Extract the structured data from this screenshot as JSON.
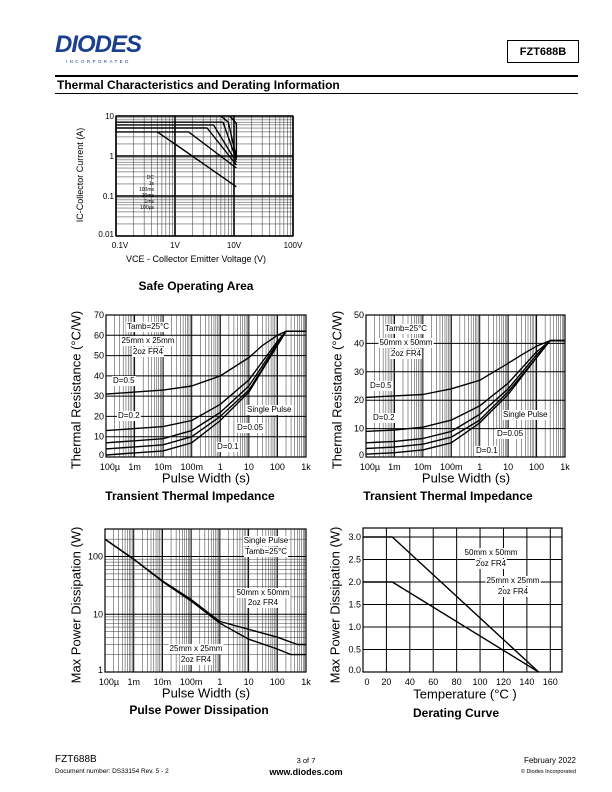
{
  "header": {
    "logo_text": "DIODES",
    "logo_sub": "INCORPORATED",
    "part_number": "FZT688B"
  },
  "section_title": "Thermal Characteristics and Derating Information",
  "footer": {
    "part": "FZT688B",
    "doc_number": "Document number: DS33154 Rev. 5 - 2",
    "page": "3 of 7",
    "website": "www.diodes.com",
    "date": "February 2022",
    "copyright": "© Diodes Incorporated"
  },
  "chart_data": [
    {
      "type": "line",
      "title": "Safe Operating Area",
      "xlabel": "VCE - Collector Emitter Voltage (V)",
      "ylabel": "IC-Collector Current (A)",
      "xscale": "log",
      "yscale": "log",
      "xlim": [
        0.1,
        100
      ],
      "ylim": [
        0.01,
        10
      ],
      "grid": true,
      "x_ticks": [
        {
          "value": 0.1,
          "label": "0.1V"
        },
        {
          "value": 1,
          "label": "1V"
        },
        {
          "value": 10,
          "label": "10V"
        },
        {
          "value": 100,
          "label": "100V"
        }
      ],
      "y_ticks": [
        {
          "value": 0.01,
          "label": "0.01"
        },
        {
          "value": 0.1,
          "label": "0.1"
        },
        {
          "value": 1,
          "label": "1"
        },
        {
          "value": 10,
          "label": "10"
        }
      ],
      "annotations": [
        "DC",
        "1s",
        "100ms",
        "10ms",
        "1ms",
        "100µs"
      ],
      "series": [
        {
          "name": "DC",
          "x": [
            0.5,
            1,
            11
          ],
          "y": [
            4,
            2,
            0.17
          ]
        },
        {
          "name": "1s",
          "x": [
            0.1,
            1.7,
            11
          ],
          "y": [
            4,
            4,
            0.5
          ]
        },
        {
          "name": "100ms",
          "x": [
            0.1,
            3.5,
            11
          ],
          "y": [
            5,
            5,
            0.6
          ]
        },
        {
          "name": "10ms",
          "x": [
            0.1,
            4.5,
            11
          ],
          "y": [
            6,
            6,
            0.7
          ]
        },
        {
          "name": "1ms",
          "x": [
            0.1,
            6.5,
            11
          ],
          "y": [
            7,
            7,
            0.8
          ]
        },
        {
          "name": "100µs",
          "x": [
            6,
            8,
            11,
            11,
            8.5
          ],
          "y": [
            10,
            7,
            0.9,
            6.5,
            10
          ]
        }
      ]
    },
    {
      "type": "line",
      "title": "Transient Thermal Impedance",
      "xlabel": "Pulse Width (s)",
      "ylabel": "Thermal Resistance (°C/W)",
      "xscale": "log",
      "yscale": "linear",
      "xlim": [
        0.0001,
        1000
      ],
      "ylim": [
        0,
        70
      ],
      "grid": true,
      "x_ticks": [
        {
          "value": 0.0001,
          "label": "100µ"
        },
        {
          "value": 0.001,
          "label": "1m"
        },
        {
          "value": 0.01,
          "label": "10m"
        },
        {
          "value": 0.1,
          "label": "100m"
        },
        {
          "value": 1,
          "label": "1"
        },
        {
          "value": 10,
          "label": "10"
        },
        {
          "value": 100,
          "label": "100"
        },
        {
          "value": 1000,
          "label": "1k"
        }
      ],
      "y_ticks": [
        {
          "value": 0,
          "label": "0"
        },
        {
          "value": 10,
          "label": "10"
        },
        {
          "value": 20,
          "label": "20"
        },
        {
          "value": 30,
          "label": "30"
        },
        {
          "value": 40,
          "label": "40"
        },
        {
          "value": 50,
          "label": "50"
        },
        {
          "value": 60,
          "label": "60"
        },
        {
          "value": 70,
          "label": "70"
        }
      ],
      "annotations": [
        "Tamb=25°C",
        "25mm x 25mm",
        "2oz FR4",
        "D=0.5",
        "D=0.2",
        "Single Pulse",
        "D=0.05",
        "D=0.1"
      ],
      "series": [
        {
          "name": "D=0.5",
          "x": [
            0.0001,
            0.001,
            0.01,
            0.1,
            1,
            10,
            30,
            100,
            200,
            1000
          ],
          "y": [
            31,
            32,
            33,
            35,
            40,
            49,
            55,
            60,
            62,
            62
          ]
        },
        {
          "name": "D=0.2",
          "x": [
            0.0001,
            0.001,
            0.01,
            0.1,
            1,
            10,
            100,
            200,
            1000
          ],
          "y": [
            13,
            14,
            15,
            18,
            26,
            38,
            57,
            62,
            62
          ]
        },
        {
          "name": "D=0.1",
          "x": [
            0.0001,
            0.001,
            0.01,
            0.1,
            1,
            10,
            100,
            200,
            1000
          ],
          "y": [
            7,
            8,
            9,
            13,
            22,
            35,
            56,
            62,
            62
          ]
        },
        {
          "name": "D=0.05",
          "x": [
            0.0001,
            0.001,
            0.01,
            0.1,
            1,
            10,
            100,
            200,
            1000
          ],
          "y": [
            4,
            5,
            6,
            10,
            20,
            33,
            55,
            62,
            62
          ]
        },
        {
          "name": "Single Pulse",
          "x": [
            0.0001,
            0.001,
            0.01,
            0.1,
            1,
            10,
            100,
            200,
            1000
          ],
          "y": [
            1,
            2,
            3,
            7,
            18,
            32,
            55,
            62,
            62
          ]
        }
      ]
    },
    {
      "type": "line",
      "title": "Transient Thermal Impedance",
      "xlabel": "Pulse Width (s)",
      "ylabel": "Thermal Resistance (°C/W)",
      "xscale": "log",
      "yscale": "linear",
      "xlim": [
        0.0001,
        1000
      ],
      "ylim": [
        0,
        50
      ],
      "grid": true,
      "x_ticks": [
        {
          "value": 0.0001,
          "label": "100µ"
        },
        {
          "value": 0.001,
          "label": "1m"
        },
        {
          "value": 0.01,
          "label": "10m"
        },
        {
          "value": 0.1,
          "label": "100m"
        },
        {
          "value": 1,
          "label": "1"
        },
        {
          "value": 10,
          "label": "10"
        },
        {
          "value": 100,
          "label": "100"
        },
        {
          "value": 1000,
          "label": "1k"
        }
      ],
      "y_ticks": [
        {
          "value": 0,
          "label": "0"
        },
        {
          "value": 10,
          "label": "10"
        },
        {
          "value": 20,
          "label": "20"
        },
        {
          "value": 30,
          "label": "30"
        },
        {
          "value": 40,
          "label": "40"
        },
        {
          "value": 50,
          "label": "50"
        }
      ],
      "annotations": [
        "Tamb=25°C",
        "50mm x 50mm",
        "2oz FR4",
        "D=0.5",
        "D=0.2",
        "Single Pulse",
        "D=0.05",
        "D=0.1"
      ],
      "series": [
        {
          "name": "D=0.5",
          "x": [
            0.0001,
            0.001,
            0.01,
            0.1,
            1,
            10,
            30,
            100,
            300,
            1000
          ],
          "y": [
            21,
            21.5,
            22,
            24,
            27,
            33,
            36,
            39,
            41,
            41
          ]
        },
        {
          "name": "D=0.2",
          "x": [
            0.0001,
            0.001,
            0.01,
            0.1,
            1,
            10,
            100,
            300,
            1000
          ],
          "y": [
            9,
            9.5,
            10.5,
            13,
            18,
            26,
            37,
            41,
            41
          ]
        },
        {
          "name": "D=0.1",
          "x": [
            0.0001,
            0.001,
            0.01,
            0.1,
            1,
            10,
            100,
            300,
            1000
          ],
          "y": [
            5,
            5.5,
            6.5,
            9,
            15,
            24,
            36,
            41,
            41
          ]
        },
        {
          "name": "D=0.05",
          "x": [
            0.0001,
            0.001,
            0.01,
            0.1,
            1,
            10,
            100,
            300,
            1000
          ],
          "y": [
            3,
            3.5,
            4.5,
            7,
            13,
            23,
            35,
            41,
            41
          ]
        },
        {
          "name": "Single Pulse",
          "x": [
            0.0001,
            0.001,
            0.01,
            0.1,
            1,
            10,
            100,
            300,
            1000
          ],
          "y": [
            1,
            1.5,
            2.5,
            5,
            12,
            22,
            35,
            41,
            41
          ]
        }
      ]
    },
    {
      "type": "line",
      "title": "Pulse Power Dissipation",
      "xlabel": "Pulse Width (s)",
      "ylabel": "Max Power Dissipation (W)",
      "xscale": "log",
      "yscale": "log",
      "xlim": [
        0.0001,
        1000
      ],
      "ylim": [
        1,
        300
      ],
      "grid": true,
      "x_ticks": [
        {
          "value": 0.0001,
          "label": "100µ"
        },
        {
          "value": 0.001,
          "label": "1m"
        },
        {
          "value": 0.01,
          "label": "10m"
        },
        {
          "value": 0.1,
          "label": "100m"
        },
        {
          "value": 1,
          "label": "1"
        },
        {
          "value": 10,
          "label": "10"
        },
        {
          "value": 100,
          "label": "100"
        },
        {
          "value": 1000,
          "label": "1k"
        }
      ],
      "y_ticks": [
        {
          "value": 1,
          "label": "1"
        },
        {
          "value": 10,
          "label": "10"
        },
        {
          "value": 100,
          "label": "100"
        }
      ],
      "annotations": [
        "Single Pulse",
        "Tamb=25°C",
        "50mm x 50mm",
        "2oz FR4",
        "25mm x 25mm",
        "2oz FR4"
      ],
      "series": [
        {
          "name": "50mm x 50mm 2oz FR4",
          "x": [
            0.0001,
            0.001,
            0.01,
            0.1,
            1,
            10,
            100,
            500,
            1000
          ],
          "y": [
            200,
            90,
            38,
            18,
            7.5,
            5.5,
            4,
            3,
            3
          ]
        },
        {
          "name": "25mm x 25mm 2oz FR4",
          "x": [
            0.0001,
            0.001,
            0.01,
            0.1,
            1,
            10,
            100,
            300,
            1000
          ],
          "y": [
            200,
            90,
            37,
            17,
            7,
            3.7,
            2.5,
            2,
            2
          ]
        }
      ]
    },
    {
      "type": "line",
      "title": "Derating Curve",
      "xlabel": "Temperature (°C )",
      "ylabel": "Max Power Dissipation (W)",
      "xscale": "linear",
      "yscale": "linear",
      "xlim": [
        0,
        170
      ],
      "ylim": [
        0,
        3.2
      ],
      "grid": true,
      "x_ticks": [
        {
          "value": 0,
          "label": "0"
        },
        {
          "value": 20,
          "label": "20"
        },
        {
          "value": 40,
          "label": "40"
        },
        {
          "value": 60,
          "label": "60"
        },
        {
          "value": 80,
          "label": "80"
        },
        {
          "value": 100,
          "label": "100"
        },
        {
          "value": 120,
          "label": "120"
        },
        {
          "value": 140,
          "label": "140"
        },
        {
          "value": 160,
          "label": "160"
        }
      ],
      "y_ticks": [
        {
          "value": 0,
          "label": "0.0"
        },
        {
          "value": 0.5,
          "label": "0.5"
        },
        {
          "value": 1,
          "label": "1.0"
        },
        {
          "value": 1.5,
          "label": "1.5"
        },
        {
          "value": 2,
          "label": "2.0"
        },
        {
          "value": 2.5,
          "label": "2.5"
        },
        {
          "value": 3,
          "label": "3.0"
        }
      ],
      "annotations": [
        "50mm x 50mm",
        "2oz FR4",
        "25mm x 25mm",
        "2oz FR4"
      ],
      "series": [
        {
          "name": "50mm x 50mm 2oz FR4",
          "x": [
            0,
            25,
            150
          ],
          "y": [
            3,
            3,
            0
          ]
        },
        {
          "name": "25mm x 25mm 2oz FR4",
          "x": [
            0,
            25,
            150
          ],
          "y": [
            2,
            2,
            0
          ]
        }
      ]
    }
  ]
}
